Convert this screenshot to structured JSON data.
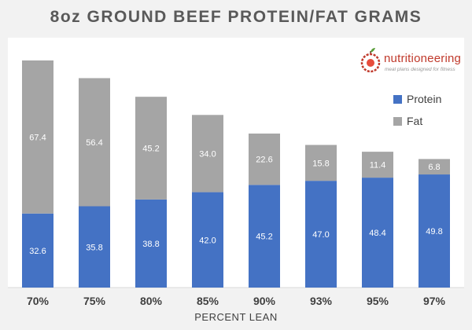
{
  "page": {
    "title": "8oz GROUND BEEF PROTEIN/FAT GRAMS"
  },
  "logo": {
    "name": "nutritioneering",
    "tagline": "meal plans designed for fitness"
  },
  "chart_data": {
    "type": "bar",
    "stacked": true,
    "title": "8oz GROUND BEEF PROTEIN/FAT GRAMS",
    "xlabel": "PERCENT LEAN",
    "ylabel": "",
    "categories": [
      "70%",
      "75%",
      "80%",
      "85%",
      "90%",
      "93%",
      "95%",
      "97%"
    ],
    "series": [
      {
        "name": "Protein",
        "color": "#4472c4",
        "values": [
          32.6,
          35.8,
          38.8,
          42.0,
          45.2,
          47.0,
          48.4,
          49.8
        ]
      },
      {
        "name": "Fat",
        "color": "#a5a5a5",
        "values": [
          67.4,
          56.4,
          45.2,
          34.0,
          22.6,
          15.8,
          11.4,
          6.8
        ]
      }
    ],
    "ylim": [
      0,
      110
    ],
    "grid": false,
    "legend_position": "right"
  }
}
